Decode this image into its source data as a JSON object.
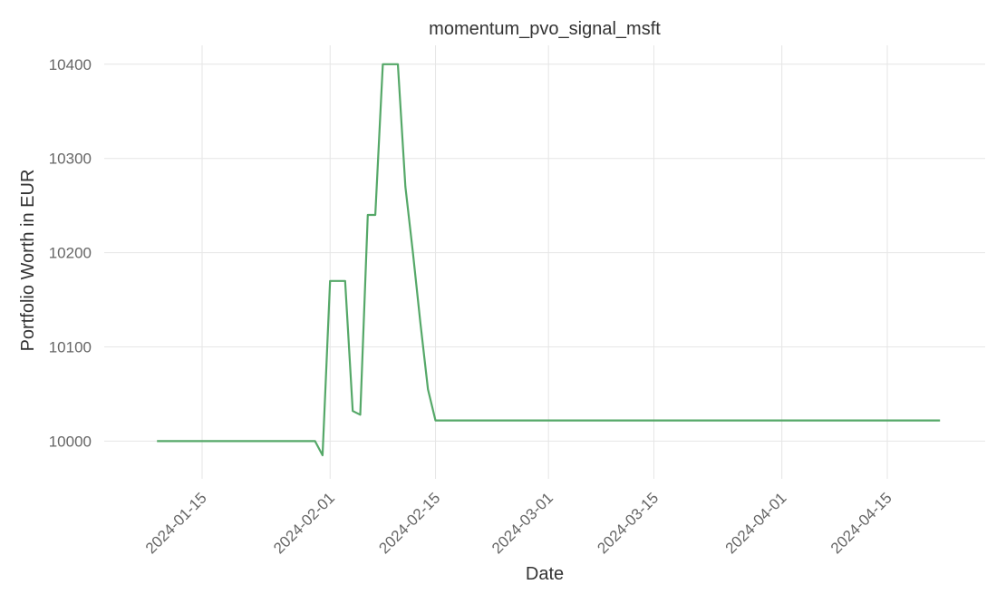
{
  "chart_data": {
    "type": "line",
    "title": "momentum_pvo_signal_msft",
    "xlabel": "Date",
    "ylabel": "Portfolio Worth in EUR",
    "x_ticks": [
      "2024-01-15",
      "2024-02-01",
      "2024-02-15",
      "2024-03-01",
      "2024-03-15",
      "2024-04-01",
      "2024-04-15"
    ],
    "y_ticks": [
      10000,
      10100,
      10200,
      10300,
      10400
    ],
    "xlim": [
      "2024-01-02",
      "2024-04-28"
    ],
    "ylim": [
      9960,
      10420
    ],
    "grid": true,
    "colors": {
      "line": "#55a868",
      "grid": "#e6e6e6",
      "tick_text": "#666666"
    },
    "series": [
      {
        "x": [
          "2024-01-09",
          "2024-01-30",
          "2024-01-31",
          "2024-02-01",
          "2024-02-02",
          "2024-02-03",
          "2024-02-04",
          "2024-02-05",
          "2024-02-06",
          "2024-02-07",
          "2024-02-08",
          "2024-02-09",
          "2024-02-10",
          "2024-02-11",
          "2024-02-12",
          "2024-02-13",
          "2024-02-14",
          "2024-02-15",
          "2024-02-16",
          "2024-02-17",
          "2024-04-22"
        ],
        "y": [
          10000,
          10000,
          9985,
          10170,
          10170,
          10170,
          10032,
          10028,
          10240,
          10240,
          10400,
          10400,
          10400,
          10270,
          10200,
          10125,
          10055,
          10022,
          10022,
          10022,
          10022
        ]
      }
    ]
  }
}
